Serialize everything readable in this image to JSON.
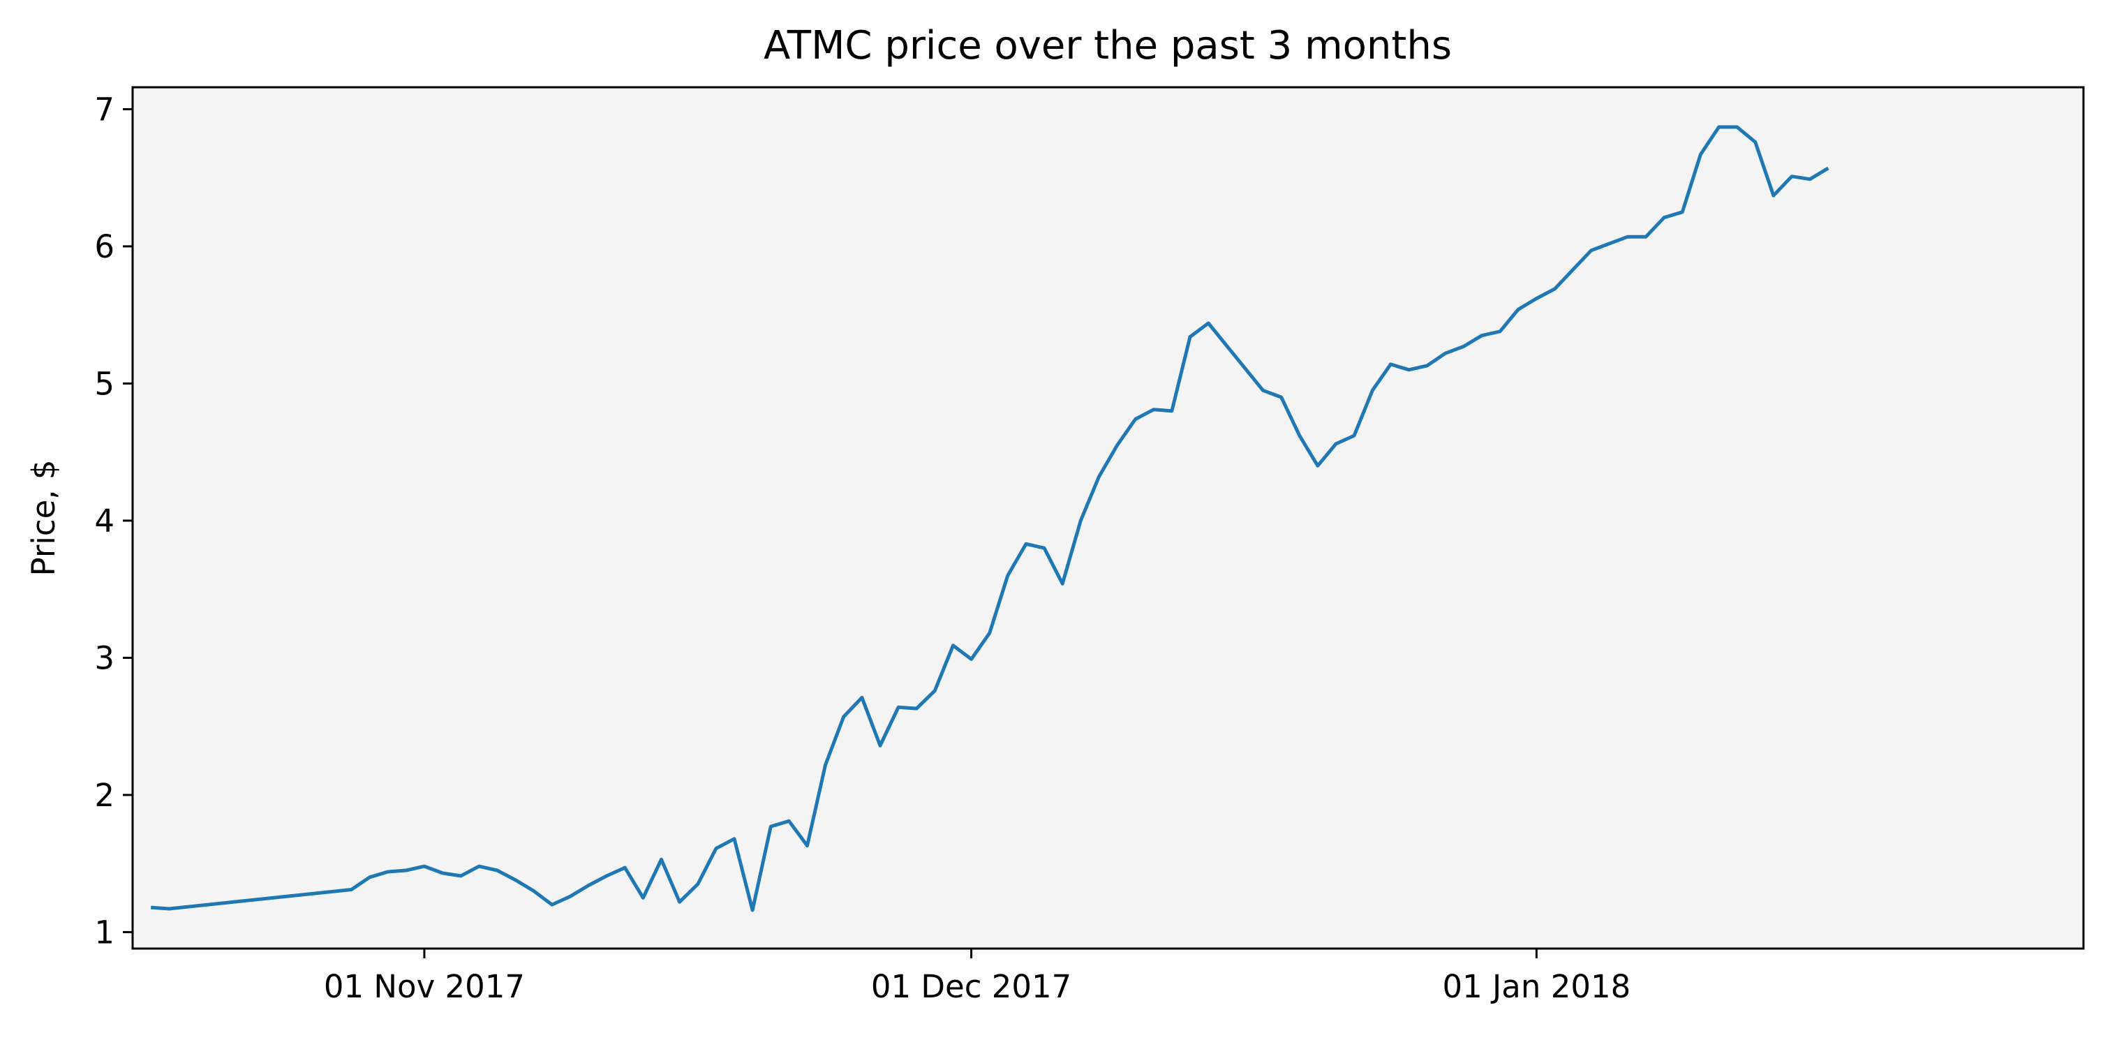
{
  "chart_data": {
    "type": "line",
    "title": "ATMC price over the past 3 months",
    "xlabel": "",
    "ylabel": "Price, $",
    "grid": false,
    "legend": "none",
    "plot_background": "#f4f4f4",
    "series_color": "#1f77b4",
    "ylim": [
      0.88,
      7.16
    ],
    "xlim": [
      "2017-10-16",
      "2018-01-31"
    ],
    "yticks": [
      1,
      2,
      3,
      4,
      5,
      6,
      7
    ],
    "xticks": [
      {
        "date": "2017-11-01",
        "label": "01 Nov 2017"
      },
      {
        "date": "2017-12-01",
        "label": "01 Dec 2017"
      },
      {
        "date": "2018-01-01",
        "label": "01 Jan 2018"
      }
    ],
    "series": [
      {
        "points": [
          [
            "2017-10-17",
            1.18
          ],
          [
            "2017-10-18",
            1.17
          ],
          [
            "2017-10-28",
            1.31
          ],
          [
            "2017-10-29",
            1.4
          ],
          [
            "2017-10-30",
            1.44
          ],
          [
            "2017-10-31",
            1.45
          ],
          [
            "2017-11-01",
            1.48
          ],
          [
            "2017-11-02",
            1.43
          ],
          [
            "2017-11-03",
            1.41
          ],
          [
            "2017-11-04",
            1.48
          ],
          [
            "2017-11-05",
            1.45
          ],
          [
            "2017-11-06",
            1.38
          ],
          [
            "2017-11-07",
            1.3
          ],
          [
            "2017-11-08",
            1.2
          ],
          [
            "2017-11-09",
            1.26
          ],
          [
            "2017-11-10",
            1.34
          ],
          [
            "2017-11-11",
            1.41
          ],
          [
            "2017-11-12",
            1.47
          ],
          [
            "2017-11-13",
            1.25
          ],
          [
            "2017-11-14",
            1.53
          ],
          [
            "2017-11-15",
            1.22
          ],
          [
            "2017-11-16",
            1.35
          ],
          [
            "2017-11-17",
            1.61
          ],
          [
            "2017-11-18",
            1.68
          ],
          [
            "2017-11-19",
            1.16
          ],
          [
            "2017-11-20",
            1.77
          ],
          [
            "2017-11-21",
            1.81
          ],
          [
            "2017-11-22",
            1.63
          ],
          [
            "2017-11-23",
            2.22
          ],
          [
            "2017-11-24",
            2.57
          ],
          [
            "2017-11-25",
            2.71
          ],
          [
            "2017-11-26",
            2.36
          ],
          [
            "2017-11-27",
            2.64
          ],
          [
            "2017-11-28",
            2.63
          ],
          [
            "2017-11-29",
            2.76
          ],
          [
            "2017-11-30",
            3.09
          ],
          [
            "2017-12-01",
            2.99
          ],
          [
            "2017-12-02",
            3.18
          ],
          [
            "2017-12-03",
            3.6
          ],
          [
            "2017-12-04",
            3.83
          ],
          [
            "2017-12-05",
            3.8
          ],
          [
            "2017-12-06",
            3.54
          ],
          [
            "2017-12-07",
            4.0
          ],
          [
            "2017-12-08",
            4.32
          ],
          [
            "2017-12-09",
            4.55
          ],
          [
            "2017-12-10",
            4.74
          ],
          [
            "2017-12-11",
            4.81
          ],
          [
            "2017-12-12",
            4.8
          ],
          [
            "2017-12-13",
            5.34
          ],
          [
            "2017-12-14",
            5.44
          ],
          [
            "2017-12-17",
            4.95
          ],
          [
            "2017-12-18",
            4.9
          ],
          [
            "2017-12-19",
            4.62
          ],
          [
            "2017-12-20",
            4.4
          ],
          [
            "2017-12-21",
            4.56
          ],
          [
            "2017-12-22",
            4.62
          ],
          [
            "2017-12-23",
            4.95
          ],
          [
            "2017-12-24",
            5.14
          ],
          [
            "2017-12-25",
            5.1
          ],
          [
            "2017-12-26",
            5.13
          ],
          [
            "2017-12-27",
            5.22
          ],
          [
            "2017-12-28",
            5.27
          ],
          [
            "2017-12-29",
            5.35
          ],
          [
            "2017-12-30",
            5.38
          ],
          [
            "2017-12-31",
            5.54
          ],
          [
            "2018-01-01",
            5.62
          ],
          [
            "2018-01-02",
            5.69
          ],
          [
            "2018-01-03",
            5.83
          ],
          [
            "2018-01-04",
            5.97
          ],
          [
            "2018-01-06",
            6.07
          ],
          [
            "2018-01-07",
            6.07
          ],
          [
            "2018-01-08",
            6.21
          ],
          [
            "2018-01-09",
            6.25
          ],
          [
            "2018-01-10",
            6.67
          ],
          [
            "2018-01-11",
            6.87
          ],
          [
            "2018-01-12",
            6.87
          ],
          [
            "2018-01-13",
            6.76
          ],
          [
            "2018-01-14",
            6.37
          ],
          [
            "2018-01-15",
            6.51
          ],
          [
            "2018-01-16",
            6.49
          ],
          [
            "2018-01-17",
            6.57
          ]
        ]
      }
    ]
  }
}
